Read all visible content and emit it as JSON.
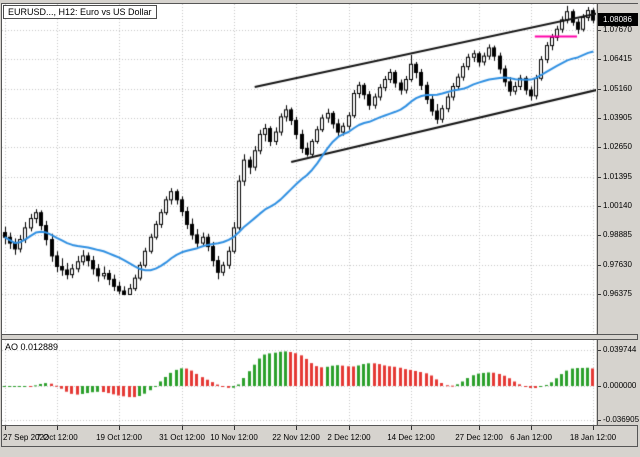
{
  "window": {
    "bg_color": "#d6d3ce",
    "border_color": "#565656",
    "pane_color": "#ffffff"
  },
  "header": {
    "symbol_label": "EURUSD..., H12: Euro vs US Dollar"
  },
  "price_axis": {
    "current_price_label": "1.08086",
    "grid_labels": [
      "1.07670",
      "1.06415",
      "1.05160",
      "1.03905",
      "1.02650",
      "1.01395",
      "1.00140",
      "0.98885",
      "0.97630",
      "0.96375"
    ]
  },
  "indicator_panel": {
    "label": "AO 0.012889",
    "axis_labels": [
      "0.039744",
      "0.000000",
      "-0.036905"
    ]
  },
  "chart_data": {
    "type": "candlestick",
    "symbol": "EURUSD",
    "timeframe": "H12",
    "title": "EURUSD..., H12: Euro vs US Dollar",
    "y_range": {
      "top": 1.0878,
      "bottom": 0.9466
    },
    "price_gridlines": [
      1.0767,
      1.06415,
      1.0516,
      1.03905,
      1.0265,
      1.01395,
      1.0014,
      0.98885,
      0.9763,
      0.96375
    ],
    "current_price": 1.08086,
    "grid_color": "#c6c6c6",
    "candle_colors": {
      "up_fill": "#ffffff",
      "down_fill": "#000000",
      "stroke": "#000000"
    },
    "x_ticks": [
      {
        "i": 0,
        "label": "27 Sep 2022"
      },
      {
        "i": 10,
        "label": "7 Oct 12:00"
      },
      {
        "i": 22,
        "label": "19 Oct 12:00"
      },
      {
        "i": 34,
        "label": "31 Oct 12:00"
      },
      {
        "i": 44,
        "label": "10 Nov 12:00"
      },
      {
        "i": 56,
        "label": "22 Nov 12:00"
      },
      {
        "i": 66,
        "label": "2 Dec 12:00"
      },
      {
        "i": 78,
        "label": "14 Dec 12:00"
      },
      {
        "i": 91,
        "label": "27 Dec 12:00"
      },
      {
        "i": 101,
        "label": "6 Jan 12:00"
      },
      {
        "i": 113,
        "label": "18 Jan 12:00"
      }
    ],
    "candles": [
      [
        0.99,
        0.9925,
        0.985,
        0.988
      ],
      [
        0.988,
        0.99,
        0.983,
        0.9855
      ],
      [
        0.9855,
        0.9875,
        0.9805,
        0.983
      ],
      [
        0.983,
        0.989,
        0.9815,
        0.987
      ],
      [
        0.987,
        0.9945,
        0.9855,
        0.992
      ],
      [
        0.992,
        0.998,
        0.9905,
        0.996
      ],
      [
        0.996,
        1.0,
        0.994,
        0.9985
      ],
      [
        0.9985,
        0.9995,
        0.991,
        0.993
      ],
      [
        0.993,
        0.995,
        0.9845,
        0.987
      ],
      [
        0.987,
        0.9895,
        0.9775,
        0.98
      ],
      [
        0.98,
        0.982,
        0.973,
        0.9755
      ],
      [
        0.9755,
        0.979,
        0.9715,
        0.974
      ],
      [
        0.974,
        0.977,
        0.97,
        0.972
      ],
      [
        0.972,
        0.9765,
        0.9705,
        0.9745
      ],
      [
        0.9745,
        0.98,
        0.973,
        0.9775
      ],
      [
        0.9775,
        0.9825,
        0.976,
        0.98
      ],
      [
        0.98,
        0.9815,
        0.9755,
        0.978
      ],
      [
        0.978,
        0.98,
        0.972,
        0.9745
      ],
      [
        0.9745,
        0.9765,
        0.969,
        0.9715
      ],
      [
        0.9715,
        0.9755,
        0.97,
        0.9725
      ],
      [
        0.9725,
        0.974,
        0.9675,
        0.97
      ],
      [
        0.97,
        0.972,
        0.965,
        0.967
      ],
      [
        0.967,
        0.969,
        0.9636,
        0.965
      ],
      [
        0.965,
        0.967,
        0.9632,
        0.9635
      ],
      [
        0.9635,
        0.968,
        0.9633,
        0.966
      ],
      [
        0.966,
        0.972,
        0.965,
        0.9705
      ],
      [
        0.9705,
        0.9775,
        0.9695,
        0.976
      ],
      [
        0.976,
        0.9835,
        0.975,
        0.982
      ],
      [
        0.982,
        0.9895,
        0.981,
        0.988
      ],
      [
        0.988,
        0.995,
        0.987,
        0.9935
      ],
      [
        0.9935,
        1.0,
        0.992,
        0.9985
      ],
      [
        0.9985,
        1.0055,
        0.9975,
        1.004
      ],
      [
        1.004,
        1.009,
        1.002,
        1.0075
      ],
      [
        1.0075,
        1.0085,
        1.002,
        1.004
      ],
      [
        1.004,
        1.0055,
        0.997,
        0.999
      ],
      [
        0.999,
        1.001,
        0.9915,
        0.9935
      ],
      [
        0.9935,
        0.996,
        0.987,
        0.989
      ],
      [
        0.989,
        0.9915,
        0.9835,
        0.9855
      ],
      [
        0.9855,
        0.99,
        0.984,
        0.988
      ],
      [
        0.988,
        0.9895,
        0.982,
        0.984
      ],
      [
        0.984,
        0.986,
        0.9755,
        0.978
      ],
      [
        0.978,
        0.98,
        0.97,
        0.973
      ],
      [
        0.973,
        0.9775,
        0.9715,
        0.976
      ],
      [
        0.976,
        0.984,
        0.9745,
        0.982
      ],
      [
        0.982,
        0.9945,
        0.981,
        0.992
      ],
      [
        0.992,
        1.0145,
        0.991,
        1.012
      ],
      [
        1.012,
        1.0235,
        1.01,
        1.021
      ],
      [
        1.021,
        1.0225,
        1.015,
        1.018
      ],
      [
        1.018,
        1.027,
        1.0165,
        1.025
      ],
      [
        1.025,
        1.034,
        1.0235,
        1.032
      ],
      [
        1.032,
        1.0365,
        1.029,
        1.0345
      ],
      [
        1.0345,
        1.0355,
        1.027,
        1.029
      ],
      [
        1.029,
        1.035,
        1.0275,
        1.033
      ],
      [
        1.033,
        1.041,
        1.0315,
        1.0395
      ],
      [
        1.0395,
        1.0445,
        1.0375,
        1.0425
      ],
      [
        1.0425,
        1.0435,
        1.036,
        1.038
      ],
      [
        1.038,
        1.0395,
        1.03,
        1.032
      ],
      [
        1.032,
        1.034,
        1.024,
        1.026
      ],
      [
        1.026,
        1.0285,
        1.0225,
        1.0235
      ],
      [
        1.0235,
        1.03,
        1.0225,
        1.029
      ],
      [
        1.029,
        1.0355,
        1.028,
        1.034
      ],
      [
        1.034,
        1.0405,
        1.033,
        1.039
      ],
      [
        1.039,
        1.043,
        1.037,
        1.041
      ],
      [
        1.041,
        1.042,
        1.0345,
        1.0365
      ],
      [
        1.0365,
        1.0385,
        1.031,
        1.033
      ],
      [
        1.033,
        1.037,
        1.0315,
        1.0355
      ],
      [
        1.0355,
        1.0415,
        1.034,
        1.04
      ],
      [
        1.04,
        1.051,
        1.039,
        1.0495
      ],
      [
        1.0495,
        1.0545,
        1.0475,
        1.053
      ],
      [
        1.053,
        1.054,
        1.047,
        1.049
      ],
      [
        1.049,
        1.0505,
        1.0425,
        1.0445
      ],
      [
        1.0445,
        1.0495,
        1.043,
        1.048
      ],
      [
        1.048,
        1.0535,
        1.0465,
        1.052
      ],
      [
        1.052,
        1.057,
        1.0505,
        1.0555
      ],
      [
        1.0555,
        1.06,
        1.054,
        1.0585
      ],
      [
        1.0585,
        1.0595,
        1.052,
        1.054
      ],
      [
        1.054,
        1.0555,
        1.049,
        1.051
      ],
      [
        1.051,
        1.057,
        1.0495,
        1.0555
      ],
      [
        1.0555,
        1.066,
        1.0545,
        1.062
      ],
      [
        1.062,
        1.063,
        1.056,
        1.0585
      ],
      [
        1.0585,
        1.06,
        1.051,
        1.053
      ],
      [
        1.053,
        1.0545,
        1.045,
        1.047
      ],
      [
        1.047,
        1.049,
        1.04,
        1.042
      ],
      [
        1.042,
        1.045,
        1.0365,
        1.0385
      ],
      [
        1.0385,
        1.0445,
        1.037,
        1.043
      ],
      [
        1.043,
        1.0495,
        1.0415,
        1.048
      ],
      [
        1.048,
        1.054,
        1.0465,
        1.0525
      ],
      [
        1.0525,
        1.058,
        1.051,
        1.0565
      ],
      [
        1.0565,
        1.0625,
        1.055,
        1.061
      ],
      [
        1.061,
        1.0665,
        1.0595,
        1.065
      ],
      [
        1.065,
        1.068,
        1.063,
        1.0665
      ],
      [
        1.0665,
        1.0675,
        1.061,
        1.063
      ],
      [
        1.063,
        1.067,
        1.0615,
        1.0655
      ],
      [
        1.0655,
        1.0705,
        1.064,
        1.069
      ],
      [
        1.069,
        1.07,
        1.0635,
        1.0655
      ],
      [
        1.0655,
        1.067,
        1.058,
        1.06
      ],
      [
        1.06,
        1.0615,
        1.0525,
        1.0545
      ],
      [
        1.0545,
        1.0565,
        1.0485,
        1.0505
      ],
      [
        1.0505,
        1.0545,
        1.049,
        1.0525
      ],
      [
        1.0525,
        1.0575,
        1.051,
        1.056
      ],
      [
        1.056,
        1.057,
        1.049,
        1.051
      ],
      [
        1.051,
        1.0525,
        1.0465,
        1.0485
      ],
      [
        1.0485,
        1.0575,
        1.047,
        1.056
      ],
      [
        1.056,
        1.0655,
        1.055,
        1.064
      ],
      [
        1.064,
        1.0715,
        1.0625,
        1.07
      ],
      [
        1.07,
        1.075,
        1.068,
        1.0735
      ],
      [
        1.0735,
        1.0785,
        1.072,
        1.077
      ],
      [
        1.077,
        1.0825,
        1.0755,
        1.081
      ],
      [
        1.081,
        1.087,
        1.0795,
        1.0845
      ],
      [
        1.0845,
        1.0855,
        1.0785,
        1.08
      ],
      [
        1.08,
        1.0815,
        1.075,
        1.077
      ],
      [
        1.077,
        1.0835,
        1.076,
        1.082
      ],
      [
        1.082,
        1.0865,
        1.0805,
        1.085
      ],
      [
        1.085,
        1.086,
        1.0795,
        1.0809
      ]
    ],
    "overlays": {
      "moving_average": {
        "period": 20,
        "color": "#2e8fe2",
        "width": 2
      },
      "channel": {
        "color": "#151515",
        "width": 2,
        "upper": [
          48,
          1.0523,
          114,
          1.0839
        ],
        "lower": [
          55,
          1.0202,
          114,
          1.0512
        ]
      },
      "horizontal_segment": {
        "price": 1.0741,
        "x_from_frac": 0.897,
        "x_to_frac": 0.968,
        "color": "#ff00a8",
        "width": 2
      }
    },
    "indicator": {
      "name": "AO",
      "display_value": 0.012889,
      "y_range": {
        "top": 0.0506,
        "bottom": -0.0429
      },
      "gridlines": [
        0.039744,
        0,
        -0.036905
      ],
      "colors": {
        "rising": "#2ca02c",
        "falling": "#e53935"
      }
    }
  }
}
